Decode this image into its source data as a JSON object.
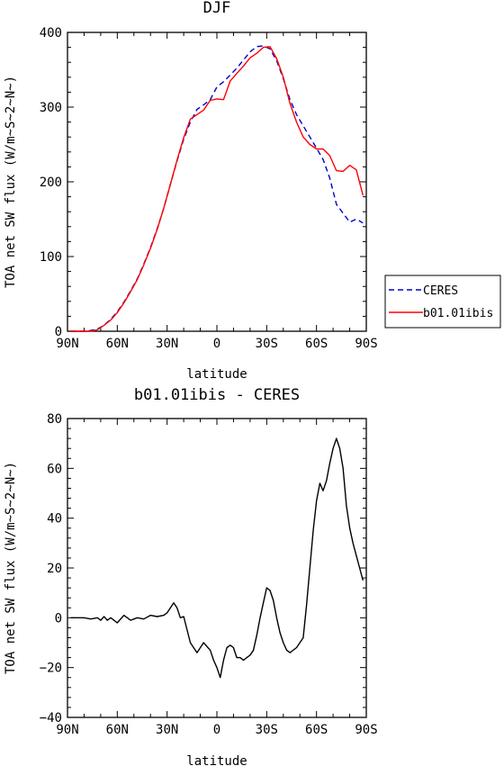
{
  "chart_data": [
    {
      "type": "line",
      "title": "DJF",
      "xlabel": "latitude",
      "ylabel": "TOA net SW flux (W/m~S~2~N~)",
      "xlim": [
        -90,
        90
      ],
      "ylim": [
        0,
        400
      ],
      "xticks": [
        -90,
        -60,
        -30,
        0,
        30,
        60,
        90
      ],
      "xtick_labels": [
        "90N",
        "60N",
        "30N",
        "0",
        "30S",
        "60S",
        "90S"
      ],
      "yticks": [
        0,
        100,
        200,
        300,
        400
      ],
      "ytick_labels": [
        "0",
        "100",
        "200",
        "300",
        "400"
      ],
      "legend_position": "right",
      "series": [
        {
          "name": "CERES",
          "color": "#0000cc",
          "dash": "dashed",
          "x": [
            -88,
            -84,
            -80,
            -76,
            -72,
            -68,
            -64,
            -60,
            -56,
            -52,
            -48,
            -44,
            -40,
            -36,
            -32,
            -28,
            -24,
            -20,
            -16,
            -12,
            -8,
            -4,
            0,
            4,
            8,
            12,
            16,
            20,
            24,
            28,
            32,
            36,
            40,
            44,
            48,
            52,
            56,
            60,
            64,
            68,
            72,
            76,
            80,
            84,
            88
          ],
          "y": [
            0,
            0,
            0,
            1,
            3,
            8,
            16,
            26,
            39,
            54,
            70,
            90,
            112,
            137,
            165,
            197,
            228,
            257,
            280,
            297,
            303,
            310,
            327,
            334,
            343,
            352,
            363,
            374,
            381,
            382,
            378,
            362,
            338,
            310,
            290,
            275,
            260,
            245,
            230,
            205,
            170,
            158,
            146,
            150,
            145
          ]
        },
        {
          "name": "b01.01ibis",
          "color": "#ff0000",
          "dash": "solid",
          "x": [
            -88,
            -84,
            -80,
            -76,
            -72,
            -68,
            -64,
            -60,
            -56,
            -52,
            -48,
            -44,
            -40,
            -36,
            -32,
            -28,
            -24,
            -20,
            -16,
            -12,
            -8,
            -4,
            0,
            4,
            8,
            12,
            16,
            20,
            24,
            28,
            32,
            36,
            40,
            44,
            48,
            52,
            56,
            60,
            64,
            68,
            72,
            76,
            80,
            84,
            86,
            88
          ],
          "y": [
            0,
            0,
            0,
            0,
            2,
            8,
            15,
            25,
            38,
            53,
            69,
            89,
            111,
            136,
            165,
            197,
            229,
            259,
            284,
            290,
            296,
            309,
            311,
            310,
            335,
            345,
            355,
            366,
            372,
            380,
            381,
            365,
            340,
            305,
            280,
            260,
            250,
            244,
            244,
            235,
            215,
            214,
            222,
            216,
            199,
            182
          ]
        }
      ]
    },
    {
      "type": "line",
      "title": "b01.01ibis - CERES",
      "xlabel": "latitude",
      "ylabel": "TOA net SW flux (W/m~S~2~N~)",
      "xlim": [
        -90,
        90
      ],
      "ylim": [
        -40,
        80
      ],
      "xticks": [
        -90,
        -60,
        -30,
        0,
        30,
        60,
        90
      ],
      "xtick_labels": [
        "90N",
        "60N",
        "30N",
        "0",
        "30S",
        "60S",
        "90S"
      ],
      "yticks": [
        -40,
        -20,
        0,
        20,
        40,
        60,
        80
      ],
      "ytick_labels": [
        "−40",
        "−20",
        "0",
        "20",
        "40",
        "60",
        "80"
      ],
      "series": [
        {
          "name": "",
          "color": "#000000",
          "dash": "solid",
          "x": [
            -88,
            -84,
            -80,
            -76,
            -72,
            -70,
            -68,
            -66,
            -64,
            -60,
            -56,
            -52,
            -50,
            -48,
            -44,
            -40,
            -36,
            -32,
            -30,
            -26,
            -24,
            -22,
            -20,
            -16,
            -12,
            -8,
            -4,
            -2,
            0,
            2,
            4,
            6,
            8,
            10,
            12,
            14,
            16,
            18,
            20,
            22,
            24,
            26,
            28,
            30,
            32,
            34,
            36,
            38,
            40,
            42,
            44,
            48,
            52,
            54,
            56,
            58,
            60,
            62,
            64,
            66,
            68,
            70,
            72,
            74,
            76,
            78,
            80,
            82,
            84,
            86,
            88
          ],
          "y": [
            0,
            0,
            0,
            -0.5,
            0,
            -1,
            0.5,
            -1,
            0,
            -2,
            1,
            -1,
            -0.5,
            0,
            -0.5,
            1,
            0.5,
            1,
            2,
            6,
            4,
            0,
            0.5,
            -10,
            -14,
            -10,
            -13,
            -17,
            -20,
            -24,
            -17,
            -12,
            -11,
            -12,
            -16,
            -16,
            -17,
            -16,
            -15,
            -13,
            -7,
            0,
            6,
            12,
            11,
            7,
            0,
            -6,
            -10,
            -13,
            -14,
            -12,
            -8,
            5,
            20,
            35,
            47,
            54,
            51,
            55,
            62,
            68,
            72,
            68,
            60,
            45,
            36,
            30,
            25,
            20,
            15
          ]
        }
      ]
    }
  ]
}
